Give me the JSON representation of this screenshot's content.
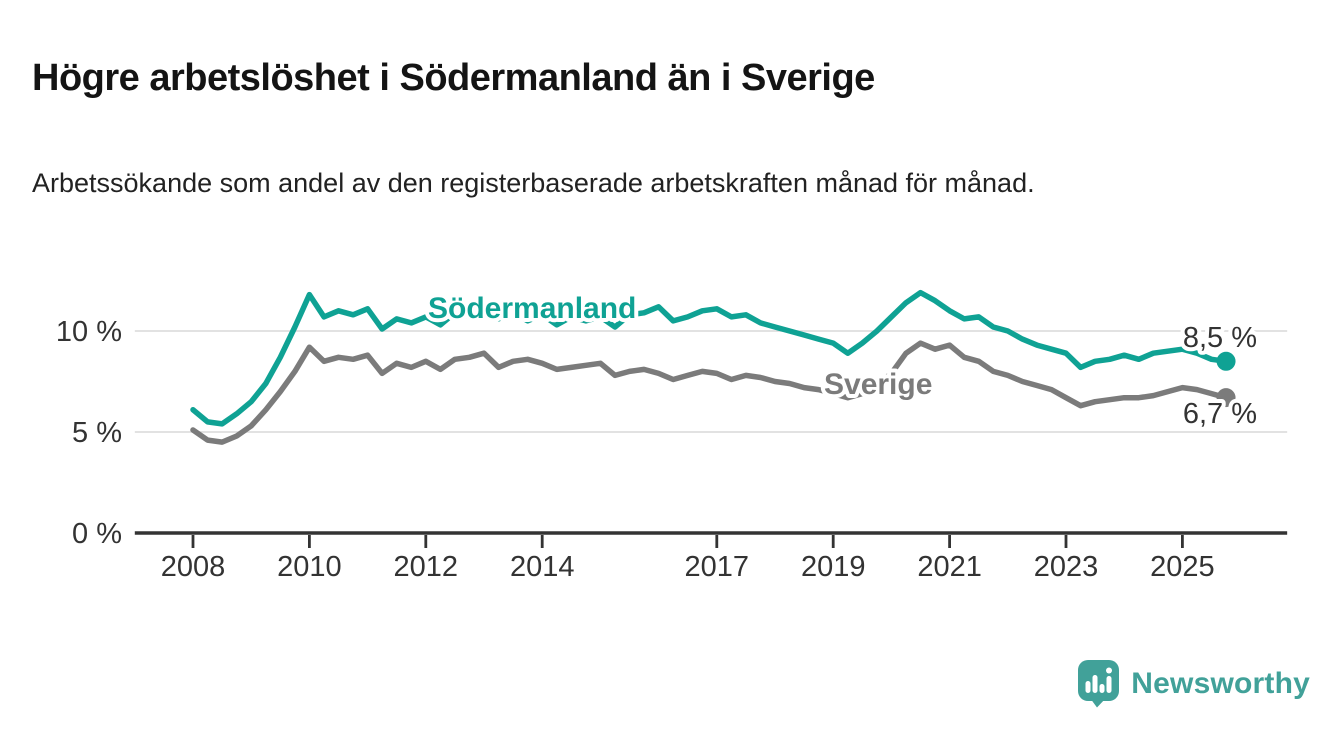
{
  "header": {
    "title": "Högre arbetslöshet i Södermanland än i Sverige",
    "subtitle": "Arbetssökande som andel av den registerbaserade arbetskraften månad för månad."
  },
  "chart_data": {
    "type": "line",
    "title": "Högre arbetslöshet i Södermanland än i Sverige",
    "xlabel": "",
    "ylabel": "Arbetssökande som andel av den registerbaserade arbetskraften",
    "x_start": 2008.0,
    "x_step": 0.25,
    "x_end": 2025.75,
    "xlim": [
      2007.0,
      2026.8
    ],
    "ylim": [
      0,
      12.5
    ],
    "grid": "horizontal",
    "gridline_color": "#d9d9d9",
    "axis_color": "#333333",
    "yticks": [
      {
        "value": 0,
        "label": "0 %"
      },
      {
        "value": 5,
        "label": "5 %"
      },
      {
        "value": 10,
        "label": "10 %"
      }
    ],
    "xticks": [
      {
        "value": 2008,
        "label": "2008"
      },
      {
        "value": 2010,
        "label": "2010"
      },
      {
        "value": 2012,
        "label": "2012"
      },
      {
        "value": 2014,
        "label": "2014"
      },
      {
        "value": 2017,
        "label": "2017"
      },
      {
        "value": 2019,
        "label": "2019"
      },
      {
        "value": 2021,
        "label": "2021"
      },
      {
        "value": 2023,
        "label": "2023"
      },
      {
        "value": 2025,
        "label": "2025"
      }
    ],
    "series": [
      {
        "name": "Södermanland",
        "color": "#0fa294",
        "end_value": 8.5,
        "end_label": "8,5 %",
        "values": [
          6.1,
          5.5,
          5.4,
          5.9,
          6.5,
          7.4,
          8.7,
          10.2,
          11.8,
          10.7,
          11.0,
          10.8,
          11.1,
          10.1,
          10.6,
          10.4,
          10.7,
          10.3,
          10.9,
          10.7,
          11.0,
          10.6,
          10.9,
          10.5,
          10.8,
          10.3,
          10.7,
          10.5,
          10.7,
          10.2,
          10.8,
          10.9,
          11.2,
          10.5,
          10.7,
          11.0,
          11.1,
          10.7,
          10.8,
          10.4,
          10.2,
          10.0,
          9.8,
          9.6,
          9.4,
          8.9,
          9.4,
          10.0,
          10.7,
          11.4,
          11.9,
          11.5,
          11.0,
          10.6,
          10.7,
          10.2,
          10.0,
          9.6,
          9.3,
          9.1,
          8.9,
          8.2,
          8.5,
          8.6,
          8.8,
          8.6,
          8.9,
          9.0,
          9.1,
          8.9,
          8.6,
          8.5
        ]
      },
      {
        "name": "Sverige",
        "color": "#7b7b7b",
        "end_value": 6.7,
        "end_label": "6,7 %",
        "values": [
          5.1,
          4.6,
          4.5,
          4.8,
          5.3,
          6.1,
          7.0,
          8.0,
          9.2,
          8.5,
          8.7,
          8.6,
          8.8,
          7.9,
          8.4,
          8.2,
          8.5,
          8.1,
          8.6,
          8.7,
          8.9,
          8.2,
          8.5,
          8.6,
          8.4,
          8.1,
          8.2,
          8.3,
          8.4,
          7.8,
          8.0,
          8.1,
          7.9,
          7.6,
          7.8,
          8.0,
          7.9,
          7.6,
          7.8,
          7.7,
          7.5,
          7.4,
          7.2,
          7.1,
          6.9,
          6.7,
          6.9,
          7.3,
          7.9,
          8.9,
          9.4,
          9.1,
          9.3,
          8.7,
          8.5,
          8.0,
          7.8,
          7.5,
          7.3,
          7.1,
          6.7,
          6.3,
          6.5,
          6.6,
          6.7,
          6.7,
          6.8,
          7.0,
          7.2,
          7.1,
          6.9,
          6.7
        ]
      }
    ]
  },
  "annotations": {
    "sodermanland_label": "Södermanland",
    "sverige_label": "Sverige",
    "end_value_top": "8,5 %",
    "end_value_bottom": "6,7 %"
  },
  "footer": {
    "brand": "Newsworthy",
    "brand_color": "#41a199",
    "logo_icon": "bar-chart-speech-bubble-icon"
  }
}
